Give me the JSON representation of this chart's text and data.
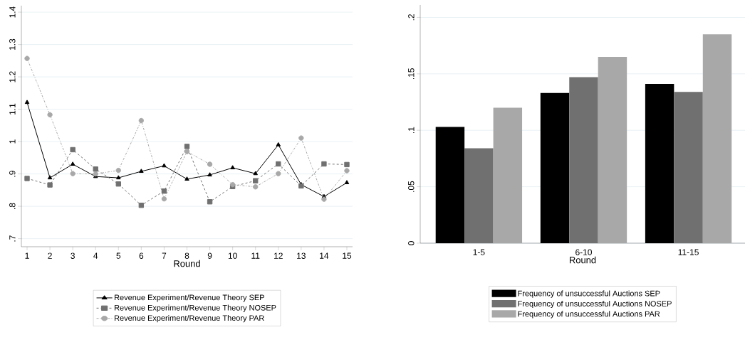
{
  "chart_data": [
    {
      "type": "line",
      "xlabel": "Round",
      "x": [
        1,
        2,
        3,
        4,
        5,
        6,
        7,
        8,
        9,
        10,
        11,
        12,
        13,
        14,
        15
      ],
      "xlim": [
        0.75,
        15.25
      ],
      "ylim": [
        0.675,
        1.42
      ],
      "xticks": [
        1,
        2,
        3,
        4,
        5,
        6,
        7,
        8,
        9,
        10,
        11,
        12,
        13,
        14,
        15
      ],
      "yticks": [
        {
          "value": 0.7,
          "label": ".7"
        },
        {
          "value": 0.8,
          "label": ".8"
        },
        {
          "value": 0.9,
          "label": ".9"
        },
        1,
        1.1,
        1.2,
        1.3,
        1.4
      ],
      "grid": "y",
      "legend": "bottom",
      "series": [
        {
          "name": "Revenue Experiment/Revenue Theory SEP",
          "color": "#000000",
          "marker": "triangle",
          "line_style": "solid",
          "values": [
            1.121,
            0.888,
            0.93,
            0.892,
            0.888,
            0.908,
            0.925,
            0.884,
            0.897,
            0.919,
            0.901,
            0.99,
            0.867,
            0.83,
            0.873
          ]
        },
        {
          "name": "Revenue Experiment/Revenue Theory NOSEP",
          "color": "#707070",
          "marker": "square",
          "line_style": "dashed",
          "values": [
            0.886,
            0.866,
            0.975,
            0.915,
            0.869,
            0.803,
            0.847,
            0.985,
            0.814,
            0.861,
            0.879,
            0.931,
            0.863,
            0.931,
            0.929
          ]
        },
        {
          "name": "Revenue Experiment/Revenue Theory PAR",
          "color": "#a8a8a8",
          "marker": "circle",
          "line_style": "dashdot",
          "values": [
            1.257,
            1.083,
            0.901,
            0.9,
            0.911,
            1.065,
            0.823,
            0.969,
            0.93,
            0.867,
            0.86,
            0.901,
            1.011,
            0.822,
            0.91
          ]
        }
      ]
    },
    {
      "type": "bar",
      "xlabel": "Round",
      "categories": [
        "1-5",
        "6-10",
        "11-15"
      ],
      "ylim": [
        0,
        0.211
      ],
      "yticks": [
        0,
        {
          "value": 0.05,
          "label": ".05"
        },
        {
          "value": 0.1,
          "label": ".1"
        },
        {
          "value": 0.15,
          "label": ".15"
        },
        {
          "value": 0.2,
          "label": ".2"
        }
      ],
      "grid": "y",
      "legend": "bottom",
      "series": [
        {
          "name": "Frequency of unsuccessful Auctions SEP",
          "color": "#000000",
          "values": [
            0.103,
            0.133,
            0.141
          ]
        },
        {
          "name": "Frequency of unsuccessful Auctions NOSEP",
          "color": "#707070",
          "values": [
            0.084,
            0.147,
            0.134
          ]
        },
        {
          "name": "Frequency of unsuccessful Auctions PAR",
          "color": "#a8a8a8",
          "values": [
            0.12,
            0.165,
            0.185
          ]
        }
      ]
    }
  ]
}
